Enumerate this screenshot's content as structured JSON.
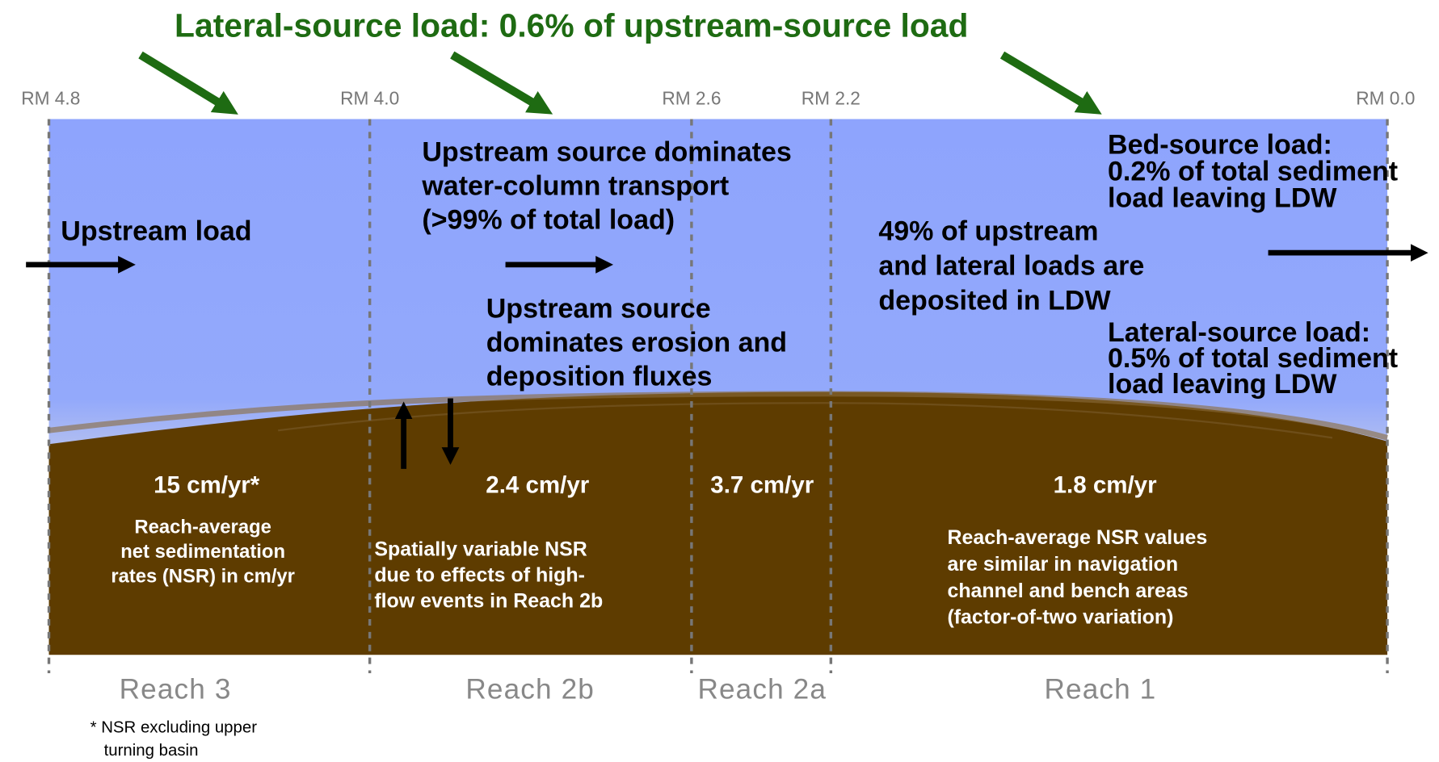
{
  "title": "Lateral-source load: 0.6% of upstream-source load",
  "river_miles": [
    "RM 4.8",
    "RM 4.0",
    "RM 2.6",
    "RM 2.2",
    "RM 0.0"
  ],
  "water_notes": {
    "upstream_load": "Upstream load",
    "transport": [
      "Upstream source dominates",
      "water-column transport",
      "(>99% of total load)"
    ],
    "fluxes": [
      "Upstream source",
      "dominates erosion and",
      "deposition fluxes"
    ],
    "deposited": [
      "49% of upstream",
      "and lateral loads are",
      "deposited in LDW"
    ],
    "bed_source": [
      "Bed-source load:",
      "0.2% of total sediment",
      "load leaving LDW"
    ],
    "lateral_source": [
      "Lateral-source load:",
      "0.5% of total sediment",
      "load leaving LDW"
    ]
  },
  "reaches": [
    {
      "name": "Reach 3",
      "rate": "15 cm/yr*",
      "note": [
        "Reach-average",
        "net sedimentation",
        "rates (NSR) in cm/yr"
      ]
    },
    {
      "name": "Reach 2b",
      "rate": "2.4 cm/yr",
      "note": [
        "Spatially variable NSR",
        "due to effects of high-",
        "flow events in Reach 2b"
      ]
    },
    {
      "name": "Reach 2a",
      "rate": "3.7 cm/yr"
    },
    {
      "name": "Reach 1",
      "rate": "1.8 cm/yr",
      "note": [
        "Reach-average NSR values",
        "are similar in navigation",
        "channel and bench areas",
        "(factor-of-two variation)"
      ]
    }
  ],
  "footnote": [
    "* NSR excluding upper",
    "turning basin"
  ]
}
